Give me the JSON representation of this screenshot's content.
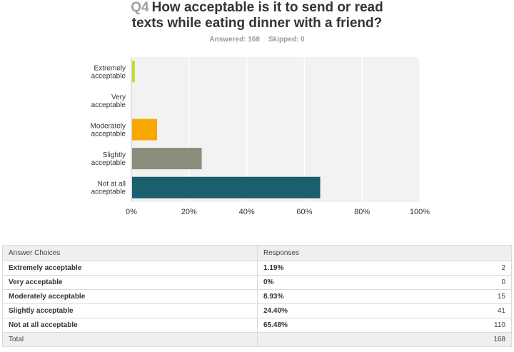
{
  "question": {
    "number": "Q4",
    "line1": "How acceptable is it to send or read",
    "line2": "texts while eating dinner with a friend?"
  },
  "meta": {
    "answered": "Answered: 168",
    "skipped": "Skipped: 0"
  },
  "chart_data": {
    "type": "bar",
    "orientation": "horizontal",
    "categories": [
      "Extremely acceptable",
      "Very acceptable",
      "Moderately acceptable",
      "Slightly acceptable",
      "Not at all acceptable"
    ],
    "category_lines": [
      [
        "Extremely",
        "acceptable"
      ],
      [
        "Very",
        "acceptable"
      ],
      [
        "Moderately",
        "acceptable"
      ],
      [
        "Slightly",
        "acceptable"
      ],
      [
        "Not at all",
        "acceptable"
      ]
    ],
    "values": [
      1.19,
      0,
      8.93,
      24.4,
      65.48
    ],
    "colors": [
      "#c5d92d",
      "#d6d6d6",
      "#f7a800",
      "#8c8c7c",
      "#1b5e6e"
    ],
    "xlim": [
      0,
      100
    ],
    "xticks": [
      "0%",
      "20%",
      "40%",
      "60%",
      "80%",
      "100%"
    ],
    "grid": true,
    "legend": "none"
  },
  "table": {
    "headers": [
      "Answer Choices",
      "Responses"
    ],
    "rows": [
      {
        "choice": "Extremely acceptable",
        "percent": "1.19%",
        "count": "2"
      },
      {
        "choice": "Very acceptable",
        "percent": "0%",
        "count": "0"
      },
      {
        "choice": "Moderately acceptable",
        "percent": "8.93%",
        "count": "15"
      },
      {
        "choice": "Slightly acceptable",
        "percent": "24.40%",
        "count": "41"
      },
      {
        "choice": "Not at all acceptable",
        "percent": "65.48%",
        "count": "110"
      }
    ],
    "total_label": "Total",
    "total_count": "168"
  }
}
